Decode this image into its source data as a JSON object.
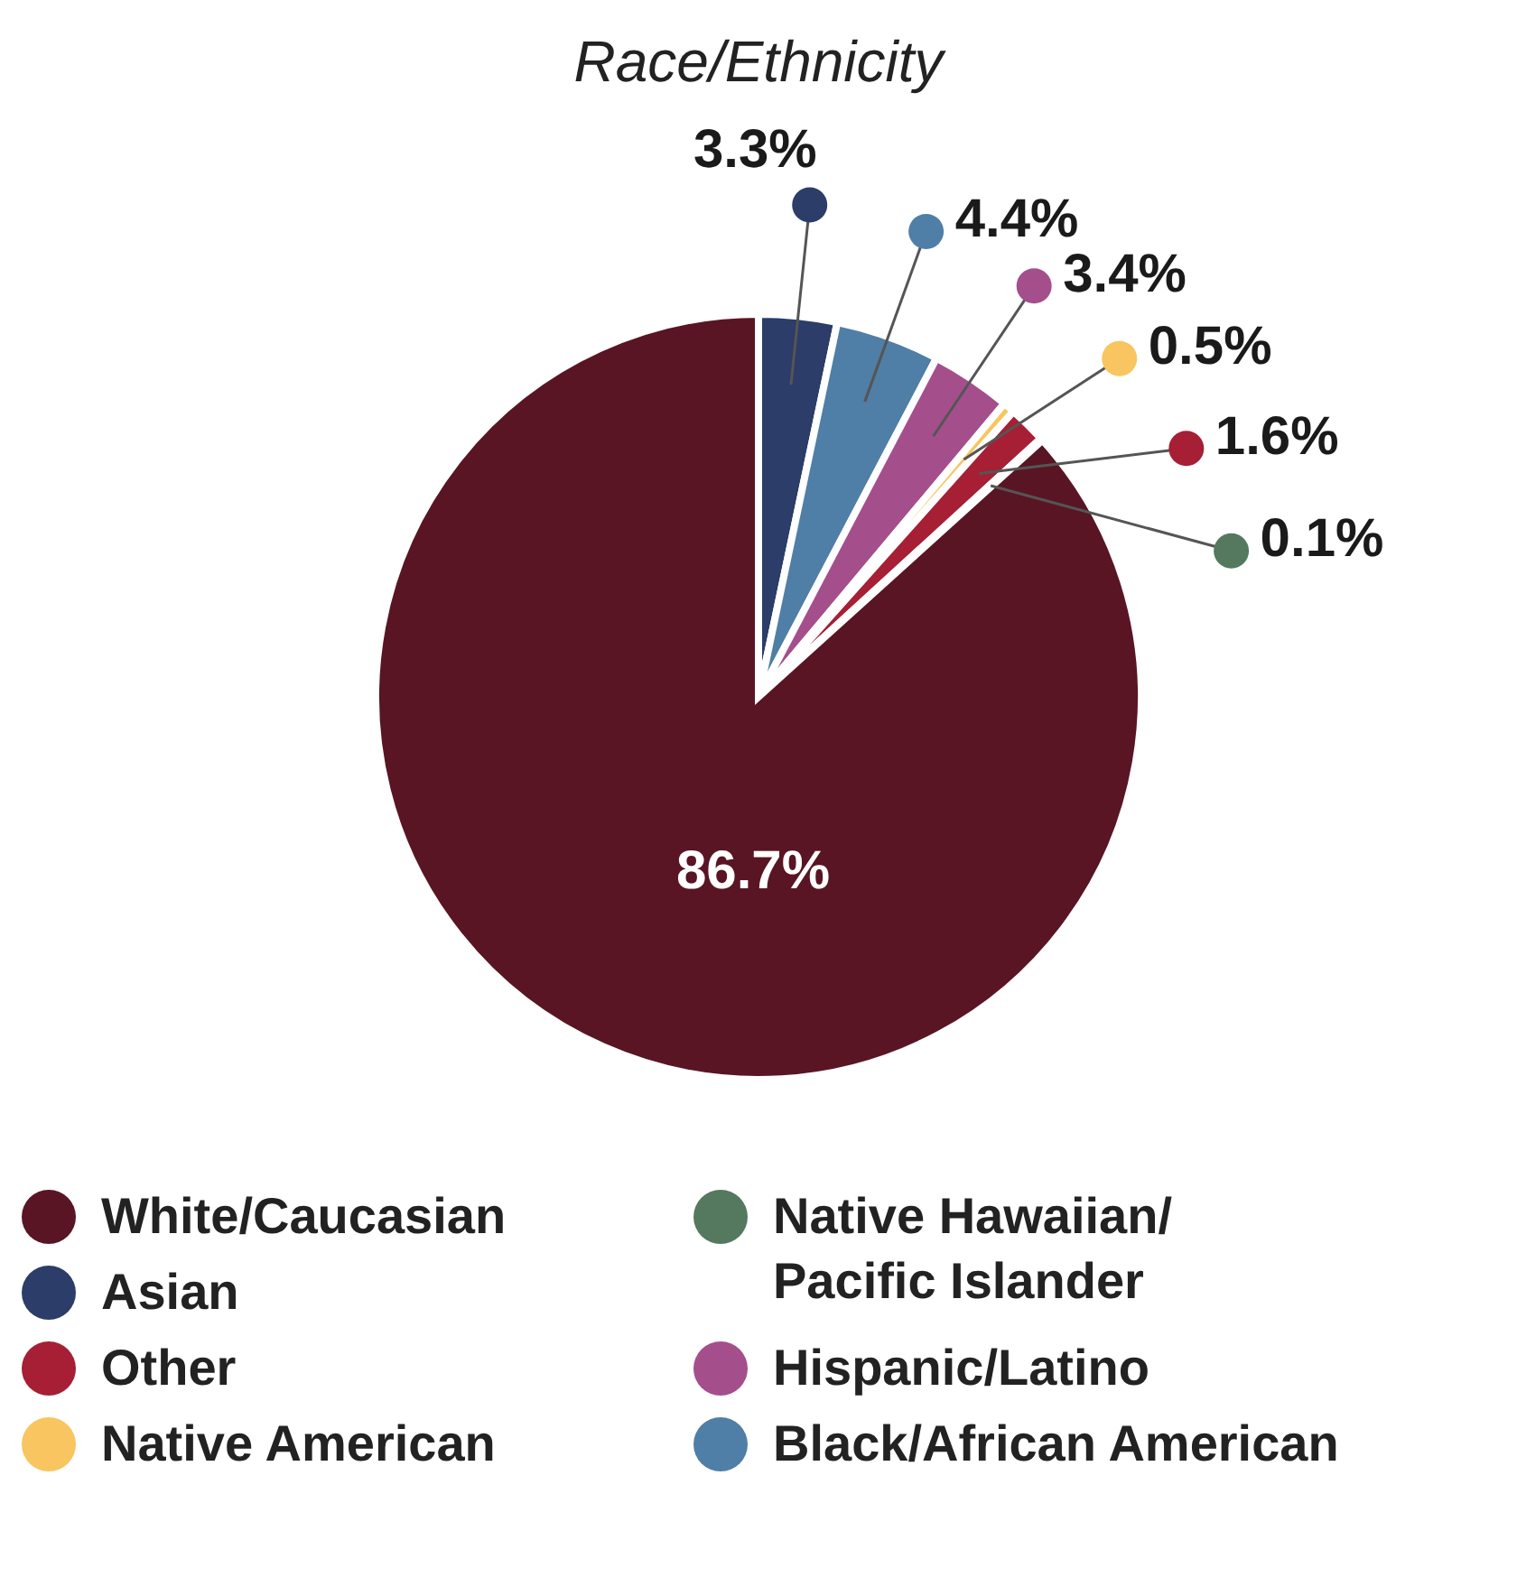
{
  "chart_data": {
    "type": "pie",
    "title": "Race/Ethnicity",
    "categories": [
      "Asian",
      "Black/African American",
      "Hispanic/Latino",
      "Native American",
      "Other",
      "Native Hawaiian/Pacific Islander",
      "White/Caucasian"
    ],
    "values": [
      3.3,
      4.4,
      3.4,
      0.5,
      1.6,
      0.1,
      86.7
    ],
    "colors": [
      "#2b3d68",
      "#4f7fa6",
      "#a44f8c",
      "#f8c560",
      "#a61f35",
      "#54795e",
      "#591524"
    ],
    "value_labels": [
      "3.3%",
      "4.4%",
      "3.4%",
      "0.5%",
      "1.6%",
      "0.1%",
      "86.7%"
    ],
    "legend": "bottom"
  }
}
